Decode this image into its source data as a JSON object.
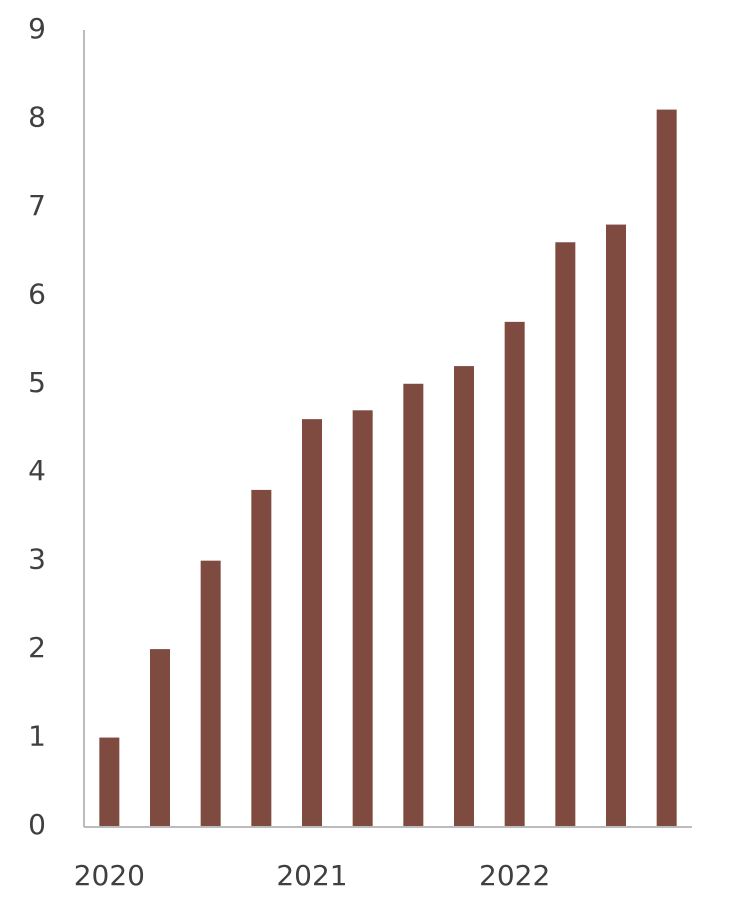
{
  "chart_data": {
    "type": "bar",
    "categories": [
      "2020",
      null,
      null,
      null,
      "2021",
      null,
      null,
      null,
      "2022",
      null,
      null,
      null
    ],
    "values": [
      1,
      2,
      3,
      3.8,
      4.6,
      4.7,
      5,
      5.2,
      5.7,
      6.6,
      6.8,
      8.1
    ],
    "color": "#7f4a40",
    "ylim": [
      0,
      9
    ],
    "yticks": [
      0,
      1,
      2,
      3,
      4,
      5,
      6,
      7,
      8,
      9
    ],
    "grid": false
  }
}
